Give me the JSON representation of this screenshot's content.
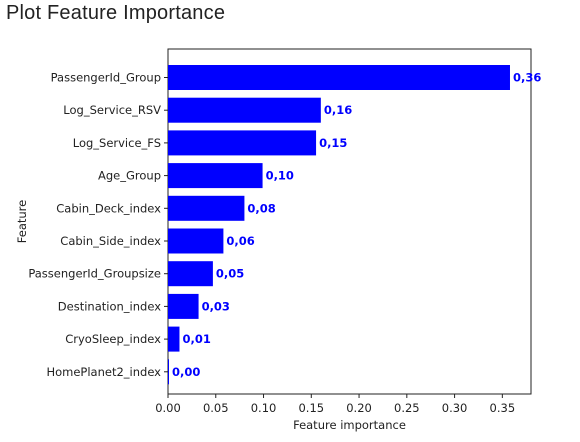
{
  "page": {
    "title": "Plot Feature Importance"
  },
  "colors": {
    "bar": "#0000ff",
    "bar_label": "#0000ff",
    "axis": "#222222",
    "text": "#222222"
  },
  "chart_data": {
    "type": "bar",
    "orientation": "horizontal",
    "title": "",
    "xlabel": "Feature importance",
    "ylabel": "Feature",
    "xlim": [
      0,
      0.38
    ],
    "xticks": [
      0.0,
      0.05,
      0.1,
      0.15,
      0.2,
      0.25,
      0.3,
      0.35
    ],
    "xtick_labels": [
      "0.00",
      "0.05",
      "0.10",
      "0.15",
      "0.20",
      "0.25",
      "0.30",
      "0.35"
    ],
    "grid": false,
    "categories": [
      "PassengerId_Group",
      "Log_Service_RSV",
      "Log_Service_FS",
      "Age_Group",
      "Cabin_Deck_index",
      "Cabin_Side_index",
      "PassengerId_Groupsize",
      "Destination_index",
      "CryoSleep_index",
      "HomePlanet2_index"
    ],
    "values": [
      0.358,
      0.16,
      0.155,
      0.099,
      0.08,
      0.058,
      0.047,
      0.032,
      0.012,
      0.001
    ],
    "value_labels": [
      "0,36",
      "0,16",
      "0,15",
      "0,10",
      "0,08",
      "0,06",
      "0,05",
      "0,03",
      "0,01",
      "0,00"
    ]
  }
}
